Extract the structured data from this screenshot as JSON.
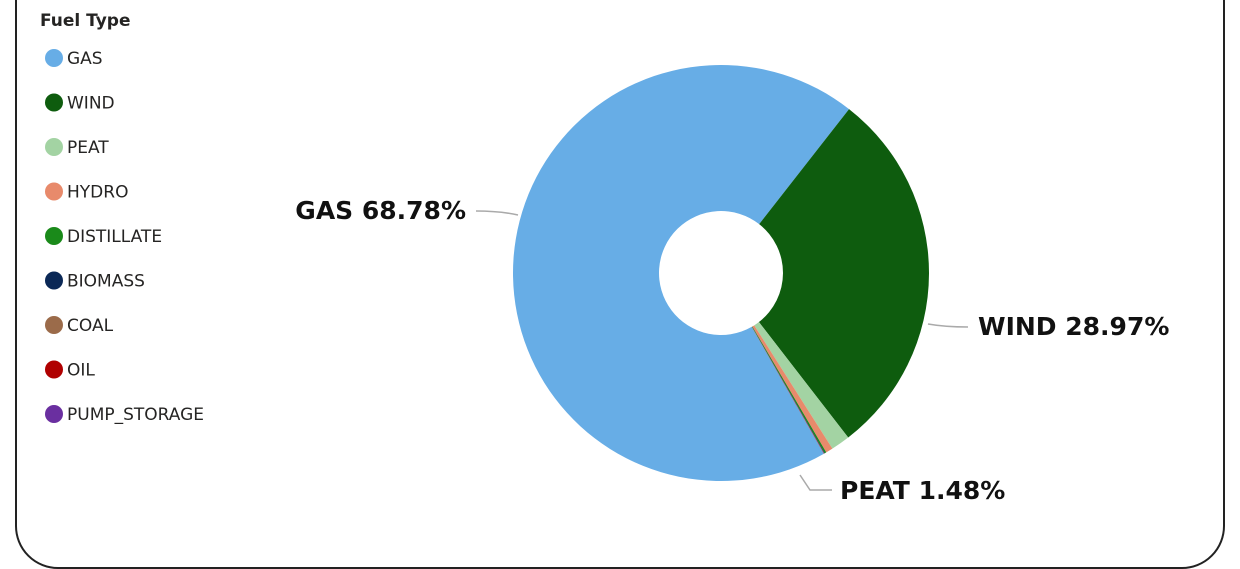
{
  "chart_data": {
    "type": "donut",
    "legend_title": "Fuel Type",
    "categories": [
      "GAS",
      "WIND",
      "PEAT",
      "HYDRO",
      "DISTILLATE",
      "BIOMASS",
      "COAL",
      "OIL",
      "PUMP_STORAGE"
    ],
    "values": [
      68.78,
      28.97,
      1.48,
      0.55,
      0.12,
      0.05,
      0.03,
      0.01,
      0.01
    ],
    "value_labels": [
      "GAS 68.78%",
      "WIND 28.97%",
      "PEAT 1.48%",
      null,
      null,
      null,
      null,
      null,
      null
    ],
    "colors": [
      "#67ade6",
      "#0e5c0e",
      "#a3d3a3",
      "#e88a6b",
      "#1a8a1a",
      "#0b2856",
      "#9b6b4a",
      "#b00000",
      "#6a2fa0"
    ],
    "legend": "top-left"
  }
}
